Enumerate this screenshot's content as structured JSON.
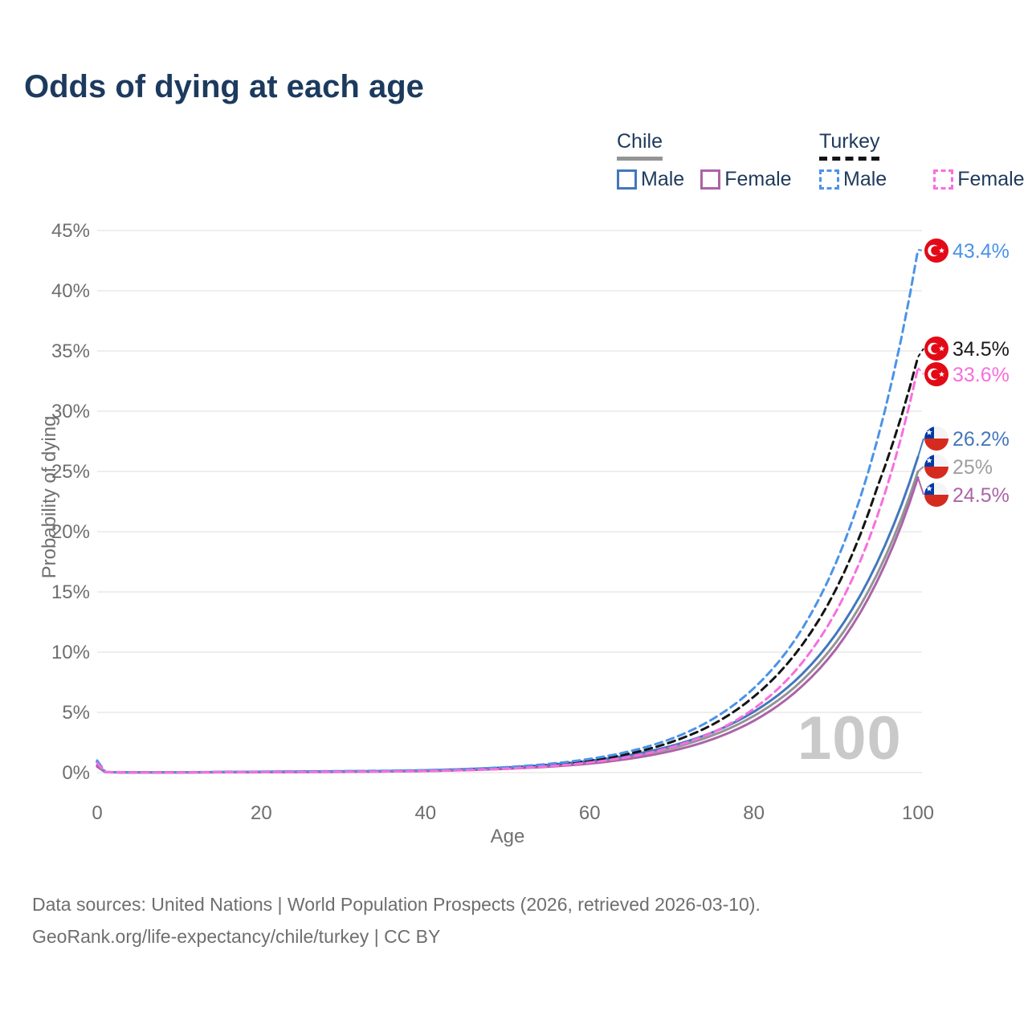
{
  "header": {
    "title": "Odds of dying at each age"
  },
  "legend": {
    "groups": [
      {
        "country": "Chile",
        "items": [
          {
            "label": "Male"
          },
          {
            "label": "Female"
          }
        ]
      },
      {
        "country": "Turkey",
        "items": [
          {
            "label": "Male"
          },
          {
            "label": "Female"
          }
        ]
      }
    ]
  },
  "chart_data": {
    "type": "line",
    "title": "Odds of dying at each age",
    "xlabel": "Age",
    "ylabel": "Probability of dying",
    "xlim": [
      0,
      100
    ],
    "ylim": [
      0,
      45
    ],
    "x_ticks": [
      0,
      20,
      40,
      60,
      80,
      100
    ],
    "y_ticks": [
      0,
      5,
      10,
      15,
      20,
      25,
      30,
      35,
      40,
      45
    ],
    "y_tick_suffix": "%",
    "grid": "horizontal",
    "legend_position": "top-right",
    "age_counter": "100",
    "ages": [
      0,
      1,
      5,
      10,
      15,
      20,
      25,
      30,
      35,
      40,
      45,
      50,
      55,
      60,
      65,
      70,
      75,
      80,
      85,
      90,
      95,
      100
    ],
    "series": [
      {
        "id": "chile-both",
        "country": "Chile",
        "sex": "Both",
        "color": "#949494",
        "dashed": false,
        "end_label": "25%",
        "label_color": "#9e9e9e",
        "flag": "chile",
        "values": [
          0.55,
          0.035,
          0.013,
          0.018,
          0.04,
          0.05,
          0.06,
          0.08,
          0.11,
          0.16,
          0.25,
          0.38,
          0.58,
          0.88,
          1.34,
          2.03,
          3.1,
          4.7,
          7.1,
          10.8,
          16.45,
          25.0
        ]
      },
      {
        "id": "chile-male",
        "country": "Chile",
        "sex": "Male",
        "color": "#4377bd",
        "dashed": false,
        "end_label": "26.2%",
        "label_color": "#4377bd",
        "flag": "chile",
        "values": [
          0.6,
          0.04,
          0.015,
          0.02,
          0.05,
          0.07,
          0.09,
          0.11,
          0.13,
          0.19,
          0.29,
          0.43,
          0.65,
          0.98,
          1.47,
          2.22,
          3.35,
          5.05,
          7.6,
          11.5,
          17.4,
          26.2
        ]
      },
      {
        "id": "chile-female",
        "country": "Chile",
        "sex": "Female",
        "color": "#ab64a8",
        "dashed": false,
        "end_label": "24.5%",
        "label_color": "#ab64a8",
        "flag": "chile",
        "values": [
          0.5,
          0.03,
          0.012,
          0.015,
          0.025,
          0.03,
          0.04,
          0.06,
          0.09,
          0.13,
          0.21,
          0.32,
          0.49,
          0.75,
          1.17,
          1.8,
          2.78,
          4.3,
          6.65,
          10.25,
          15.85,
          24.5
        ]
      },
      {
        "id": "turkey-both",
        "country": "Turkey",
        "sex": "Both",
        "color": "#141414",
        "dashed": true,
        "end_label": "34.5%",
        "label_color": "#1a1a1a",
        "flag": "turkey",
        "values": [
          0.9,
          0.045,
          0.018,
          0.025,
          0.04,
          0.06,
          0.08,
          0.1,
          0.12,
          0.17,
          0.26,
          0.4,
          0.63,
          1.0,
          1.6,
          2.55,
          4.0,
          6.3,
          9.8,
          15.2,
          23.6,
          34.5
        ]
      },
      {
        "id": "turkey-male",
        "country": "Turkey",
        "sex": "Male",
        "color": "#4b93e8",
        "dashed": true,
        "end_label": "43.4%",
        "label_color": "#4b93e8",
        "flag": "turkey",
        "values": [
          1.0,
          0.05,
          0.02,
          0.03,
          0.05,
          0.08,
          0.1,
          0.12,
          0.15,
          0.2,
          0.3,
          0.46,
          0.72,
          1.13,
          1.79,
          2.82,
          4.45,
          7.0,
          11.0,
          17.4,
          27.5,
          43.4
        ]
      },
      {
        "id": "turkey-female",
        "country": "Turkey",
        "sex": "Female",
        "color": "#f86ede",
        "dashed": true,
        "end_label": "33.6%",
        "label_color": "#f86ede",
        "flag": "turkey",
        "values": [
          0.8,
          0.04,
          0.015,
          0.02,
          0.03,
          0.04,
          0.05,
          0.07,
          0.09,
          0.14,
          0.21,
          0.33,
          0.53,
          0.84,
          1.33,
          2.11,
          3.34,
          5.3,
          8.4,
          13.35,
          21.2,
          33.6
        ]
      }
    ],
    "flag_colors": {
      "turkey_red": "#e30a17",
      "chile_blue": "#0039a6",
      "chile_red": "#d52b1e",
      "star_white": "#ffffff"
    }
  },
  "footer": {
    "line1": "Data sources: United Nations | World Population Prospects (2026, retrieved 2026-03-10).",
    "line2": "GeoRank.org/life-expectancy/chile/turkey | CC BY"
  }
}
